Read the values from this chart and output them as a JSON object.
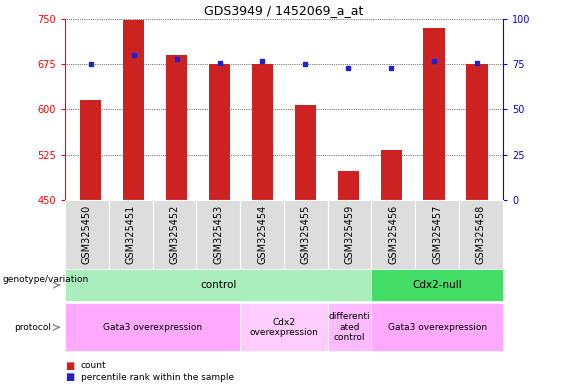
{
  "title": "GDS3949 / 1452069_a_at",
  "samples": [
    "GSM325450",
    "GSM325451",
    "GSM325452",
    "GSM325453",
    "GSM325454",
    "GSM325455",
    "GSM325459",
    "GSM325456",
    "GSM325457",
    "GSM325458"
  ],
  "count_values": [
    615,
    748,
    690,
    675,
    675,
    607,
    497,
    532,
    735,
    675
  ],
  "percentile_values": [
    75,
    80,
    78,
    76,
    77,
    75,
    73,
    73,
    77,
    76
  ],
  "ylim_left": [
    450,
    750
  ],
  "ylim_right": [
    0,
    100
  ],
  "yticks_left": [
    450,
    525,
    600,
    675,
    750
  ],
  "yticks_right": [
    0,
    25,
    50,
    75,
    100
  ],
  "bar_color": "#cc2222",
  "dot_color": "#2222cc",
  "grid_color": "#000000",
  "plot_bg": "#ffffff",
  "genotype_groups": [
    {
      "label": "control",
      "start": 0,
      "end": 7,
      "color": "#aaeebb"
    },
    {
      "label": "Cdx2-null",
      "start": 7,
      "end": 10,
      "color": "#44dd66"
    }
  ],
  "protocol_groups": [
    {
      "label": "Gata3 overexpression",
      "start": 0,
      "end": 4,
      "color": "#ffaaff"
    },
    {
      "label": "Cdx2\noverexpression",
      "start": 4,
      "end": 6,
      "color": "#ffccff"
    },
    {
      "label": "differenti\nated\ncontrol",
      "start": 6,
      "end": 7,
      "color": "#ffbbff"
    },
    {
      "label": "Gata3 overexpression",
      "start": 7,
      "end": 10,
      "color": "#ffaaff"
    }
  ],
  "legend_items": [
    {
      "label": "count",
      "color": "#cc2222"
    },
    {
      "label": "percentile rank within the sample",
      "color": "#2222cc"
    }
  ],
  "bar_width": 0.5,
  "title_fontsize": 9,
  "tick_fontsize": 7,
  "label_fontsize": 7,
  "annot_fontsize": 7.5,
  "proto_fontsize": 6.5
}
